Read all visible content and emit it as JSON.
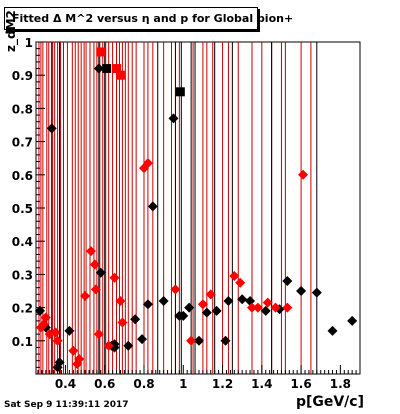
{
  "title": "Fitted Δ M^2 versus η and p for Global pion+",
  "y_title": "z_dM2",
  "x_title": "p[GeV/c]",
  "timestamp": "Sat Sep  9 11:39:11 2017",
  "colors": {
    "black_series": "#000000",
    "red_series": "#ff0000",
    "vline_red": "#cc0000",
    "axis": "#000000"
  },
  "chart_data": {
    "type": "scatter",
    "xlim": [
      0.25,
      1.9
    ],
    "ylim": [
      0,
      1.0
    ],
    "x_ticks": [
      0.4,
      0.6,
      0.8,
      1.0,
      1.2,
      1.4,
      1.6,
      1.8
    ],
    "x_tick_labels": [
      "0.4",
      "0.6",
      "0.8",
      "1",
      "1.2",
      "1.4",
      "1.6",
      "1.8"
    ],
    "y_ticks": [
      0.1,
      0.2,
      0.3,
      0.4,
      0.5,
      0.6,
      0.7,
      0.8,
      0.9,
      1.0
    ],
    "y_tick_labels": [
      "0.1",
      "0.2",
      "0.3",
      "0.4",
      "0.5",
      "0.6",
      "0.7",
      "0.8",
      "0.9",
      "1"
    ],
    "grid": false,
    "vertical_lines_red": [
      0.265,
      0.275,
      0.285,
      0.305,
      0.315,
      0.335,
      0.345,
      0.36,
      0.375,
      0.39,
      0.41,
      0.435,
      0.45,
      0.465,
      0.48,
      0.495,
      0.505,
      0.525,
      0.545,
      0.56,
      0.575,
      0.59,
      0.605,
      0.62,
      0.64,
      0.66,
      0.675,
      0.69,
      0.705,
      0.72,
      0.74,
      0.76,
      0.8,
      0.82,
      0.845,
      0.9,
      0.94,
      0.98,
      1.05,
      1.1,
      1.12,
      1.15,
      1.2,
      1.23,
      1.28,
      1.35,
      1.4,
      1.45,
      1.5,
      1.52,
      1.6,
      1.65
    ],
    "vertical_lines_black": [
      0.33,
      0.37,
      0.57,
      0.6,
      0.87,
      0.96,
      0.99,
      1.04,
      1.06,
      1.16,
      1.25,
      1.45,
      1.68
    ],
    "series": [
      {
        "marker": "diamond",
        "color": "#000000",
        "points": [
          [
            0.27,
            0.19
          ],
          [
            0.3,
            0.14
          ],
          [
            0.33,
            0.74
          ],
          [
            0.36,
            0.02
          ],
          [
            0.37,
            0.035
          ],
          [
            0.42,
            0.13
          ],
          [
            0.57,
            0.92
          ],
          [
            0.58,
            0.305
          ],
          [
            0.635,
            0.085
          ],
          [
            0.65,
            0.08
          ],
          [
            0.65,
            0.09
          ],
          [
            0.72,
            0.085
          ],
          [
            0.755,
            0.165
          ],
          [
            0.79,
            0.105
          ],
          [
            0.82,
            0.21
          ],
          [
            0.845,
            0.505
          ],
          [
            0.9,
            0.22
          ],
          [
            0.95,
            0.77
          ],
          [
            0.98,
            0.175
          ],
          [
            1.0,
            0.175
          ],
          [
            1.03,
            0.2
          ],
          [
            1.08,
            0.1
          ],
          [
            1.12,
            0.185
          ],
          [
            1.17,
            0.19
          ],
          [
            1.215,
            0.1
          ],
          [
            1.23,
            0.22
          ],
          [
            1.3,
            0.225
          ],
          [
            1.34,
            0.22
          ],
          [
            1.42,
            0.19
          ],
          [
            1.49,
            0.195
          ],
          [
            1.53,
            0.28
          ],
          [
            1.6,
            0.25
          ],
          [
            1.68,
            0.245
          ],
          [
            1.76,
            0.13
          ],
          [
            1.86,
            0.16
          ]
        ]
      },
      {
        "marker": "square",
        "color": "#000000",
        "points": [
          [
            0.61,
            0.92
          ],
          [
            0.985,
            0.85
          ]
        ]
      },
      {
        "marker": "diamond",
        "color": "#ff0000",
        "points": [
          [
            0.275,
            0.14
          ],
          [
            0.29,
            0.15
          ],
          [
            0.3,
            0.17
          ],
          [
            0.32,
            0.12
          ],
          [
            0.35,
            0.125
          ],
          [
            0.36,
            0.1
          ],
          [
            0.44,
            0.07
          ],
          [
            0.46,
            0.03
          ],
          [
            0.47,
            0.045
          ],
          [
            0.5,
            0.235
          ],
          [
            0.53,
            0.37
          ],
          [
            0.55,
            0.33
          ],
          [
            0.555,
            0.255
          ],
          [
            0.57,
            0.12
          ],
          [
            0.62,
            0.085
          ],
          [
            0.65,
            0.29
          ],
          [
            0.68,
            0.22
          ],
          [
            0.69,
            0.155
          ],
          [
            0.8,
            0.62
          ],
          [
            0.82,
            0.635
          ],
          [
            0.96,
            0.255
          ],
          [
            1.04,
            0.1
          ],
          [
            1.1,
            0.21
          ],
          [
            1.14,
            0.24
          ],
          [
            1.26,
            0.295
          ],
          [
            1.29,
            0.275
          ],
          [
            1.35,
            0.2
          ],
          [
            1.38,
            0.2
          ],
          [
            1.43,
            0.215
          ],
          [
            1.47,
            0.2
          ],
          [
            1.53,
            0.2
          ],
          [
            1.61,
            0.6
          ]
        ]
      },
      {
        "marker": "square",
        "color": "#ff0000",
        "points": [
          [
            0.58,
            0.97
          ],
          [
            0.66,
            0.92
          ],
          [
            0.68,
            0.9
          ]
        ]
      }
    ]
  }
}
